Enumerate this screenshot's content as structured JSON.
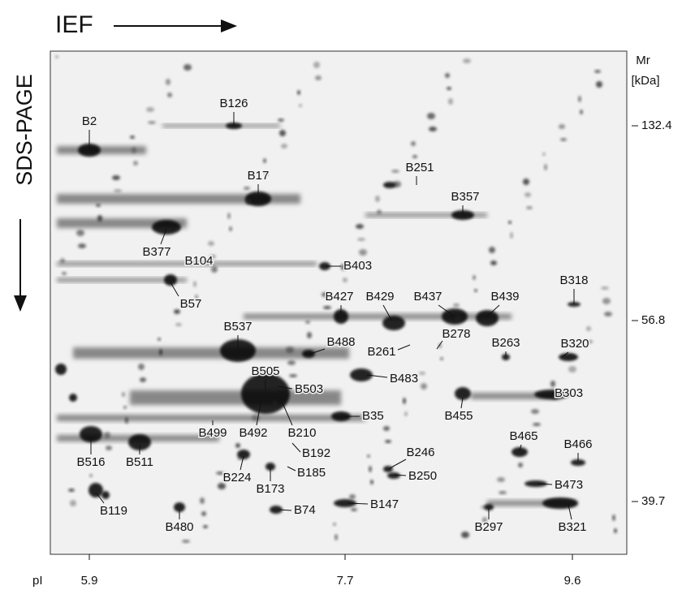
{
  "axes": {
    "x_title": "IEF",
    "y_title": "SDS-PAGE",
    "x_label": "pI",
    "y_label": "Mr",
    "y_unit": "[kDa]",
    "x_ticks": [
      5.9,
      7.7,
      9.6
    ],
    "y_ticks": [
      132.4,
      56.8,
      39.7
    ]
  },
  "spots": [
    "B126",
    "B2",
    "B17",
    "B251",
    "B357",
    "B377",
    "B104",
    "B403",
    "B57",
    "B427",
    "B429",
    "B437",
    "B439",
    "B318",
    "B537",
    "B488",
    "B278",
    "B261",
    "B263",
    "B320",
    "B483",
    "B505",
    "B503",
    "B303",
    "B455",
    "B499",
    "B492",
    "B210",
    "B35",
    "B465",
    "B466",
    "B192",
    "B246",
    "B516",
    "B511",
    "B224",
    "B185",
    "B250",
    "B173",
    "B473",
    "B119",
    "B147",
    "B74",
    "B297",
    "B321",
    "B480"
  ]
}
